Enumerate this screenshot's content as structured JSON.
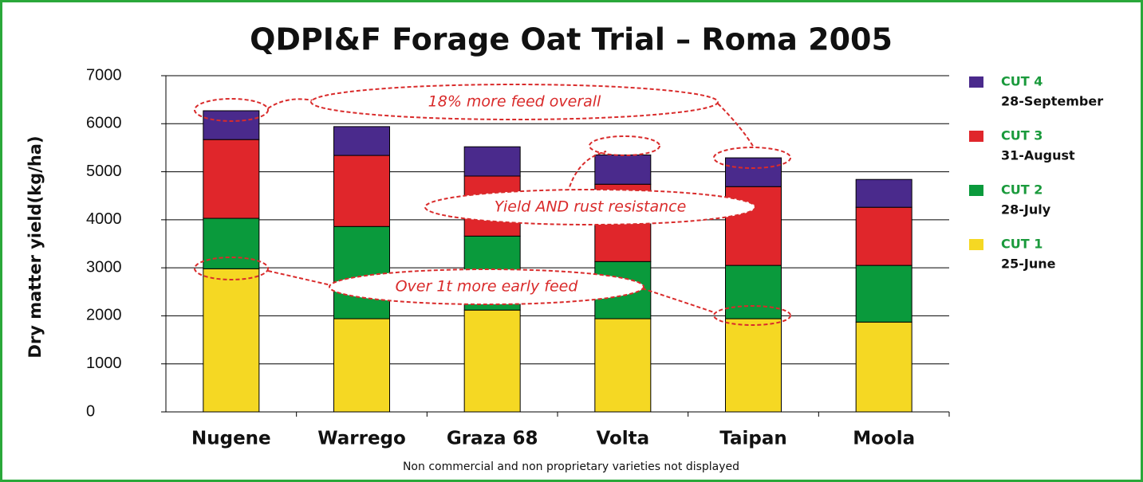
{
  "chart_data": {
    "type": "stacked_bar",
    "title": "QDPI&F Forage Oat Trial – Roma 2005",
    "y_label": "Dry matter yield(kg/ha)",
    "categories": [
      "Nugene",
      "Warrego",
      "Graza 68",
      "Volta",
      "Taipan",
      "Moola"
    ],
    "series": [
      {
        "name": "CUT 1",
        "date": "25-June",
        "color": "#f5d823",
        "values": [
          2980,
          1940,
          2120,
          1940,
          1940,
          1870
        ]
      },
      {
        "name": "CUT 2",
        "date": "28-July",
        "color": "#0a9a3c",
        "values": [
          1050,
          1920,
          1540,
          1190,
          1110,
          1180
        ]
      },
      {
        "name": "CUT 3",
        "date": "31-August",
        "color": "#e0262b",
        "values": [
          1640,
          1480,
          1250,
          1610,
          1640,
          1210
        ]
      },
      {
        "name": "CUT 4",
        "date": "28-September",
        "color": "#4a2a8c",
        "values": [
          600,
          600,
          610,
          610,
          600,
          580
        ]
      }
    ],
    "ylim": [
      0,
      7000
    ],
    "yticks": [
      0,
      1000,
      2000,
      3000,
      4000,
      5000,
      6000,
      7000
    ],
    "grid": true,
    "annotations": [
      "18% more feed overall",
      "Yield AND rust resistance",
      "Over 1t more early feed"
    ],
    "footnote": "Non commercial and non proprietary varieties not displayed"
  }
}
